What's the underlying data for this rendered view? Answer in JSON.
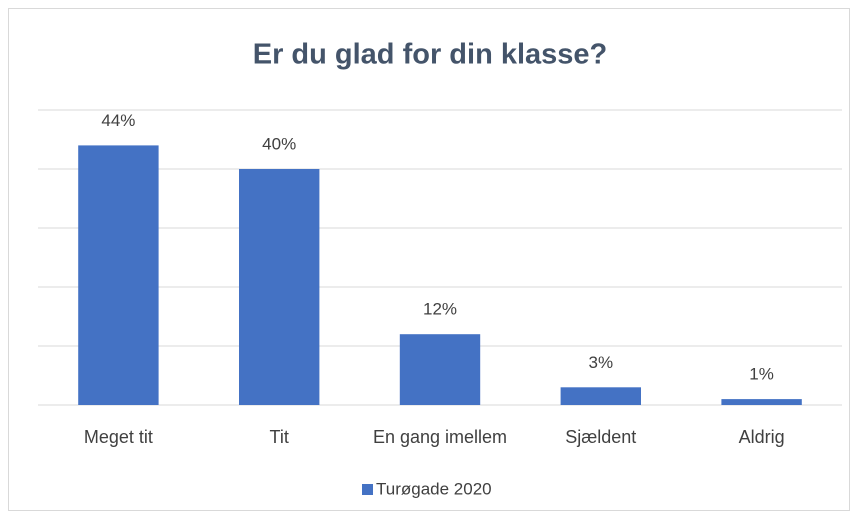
{
  "chart_data": {
    "type": "bar",
    "title": "Er du glad for din klasse?",
    "categories": [
      "Meget tit",
      "Tit",
      "En gang imellem",
      "Sjældent",
      "Aldrig"
    ],
    "series": [
      {
        "name": "Turøgade 2020",
        "color": "#4472c4",
        "values": [
          44,
          40,
          12,
          3,
          1
        ],
        "value_labels": [
          "44%",
          "40%",
          "12%",
          "3%",
          "1%"
        ]
      }
    ],
    "ylim": [
      0,
      50
    ],
    "yticks": [
      0,
      10,
      20,
      30,
      40,
      50
    ],
    "grid": true,
    "legend": "bottom"
  }
}
